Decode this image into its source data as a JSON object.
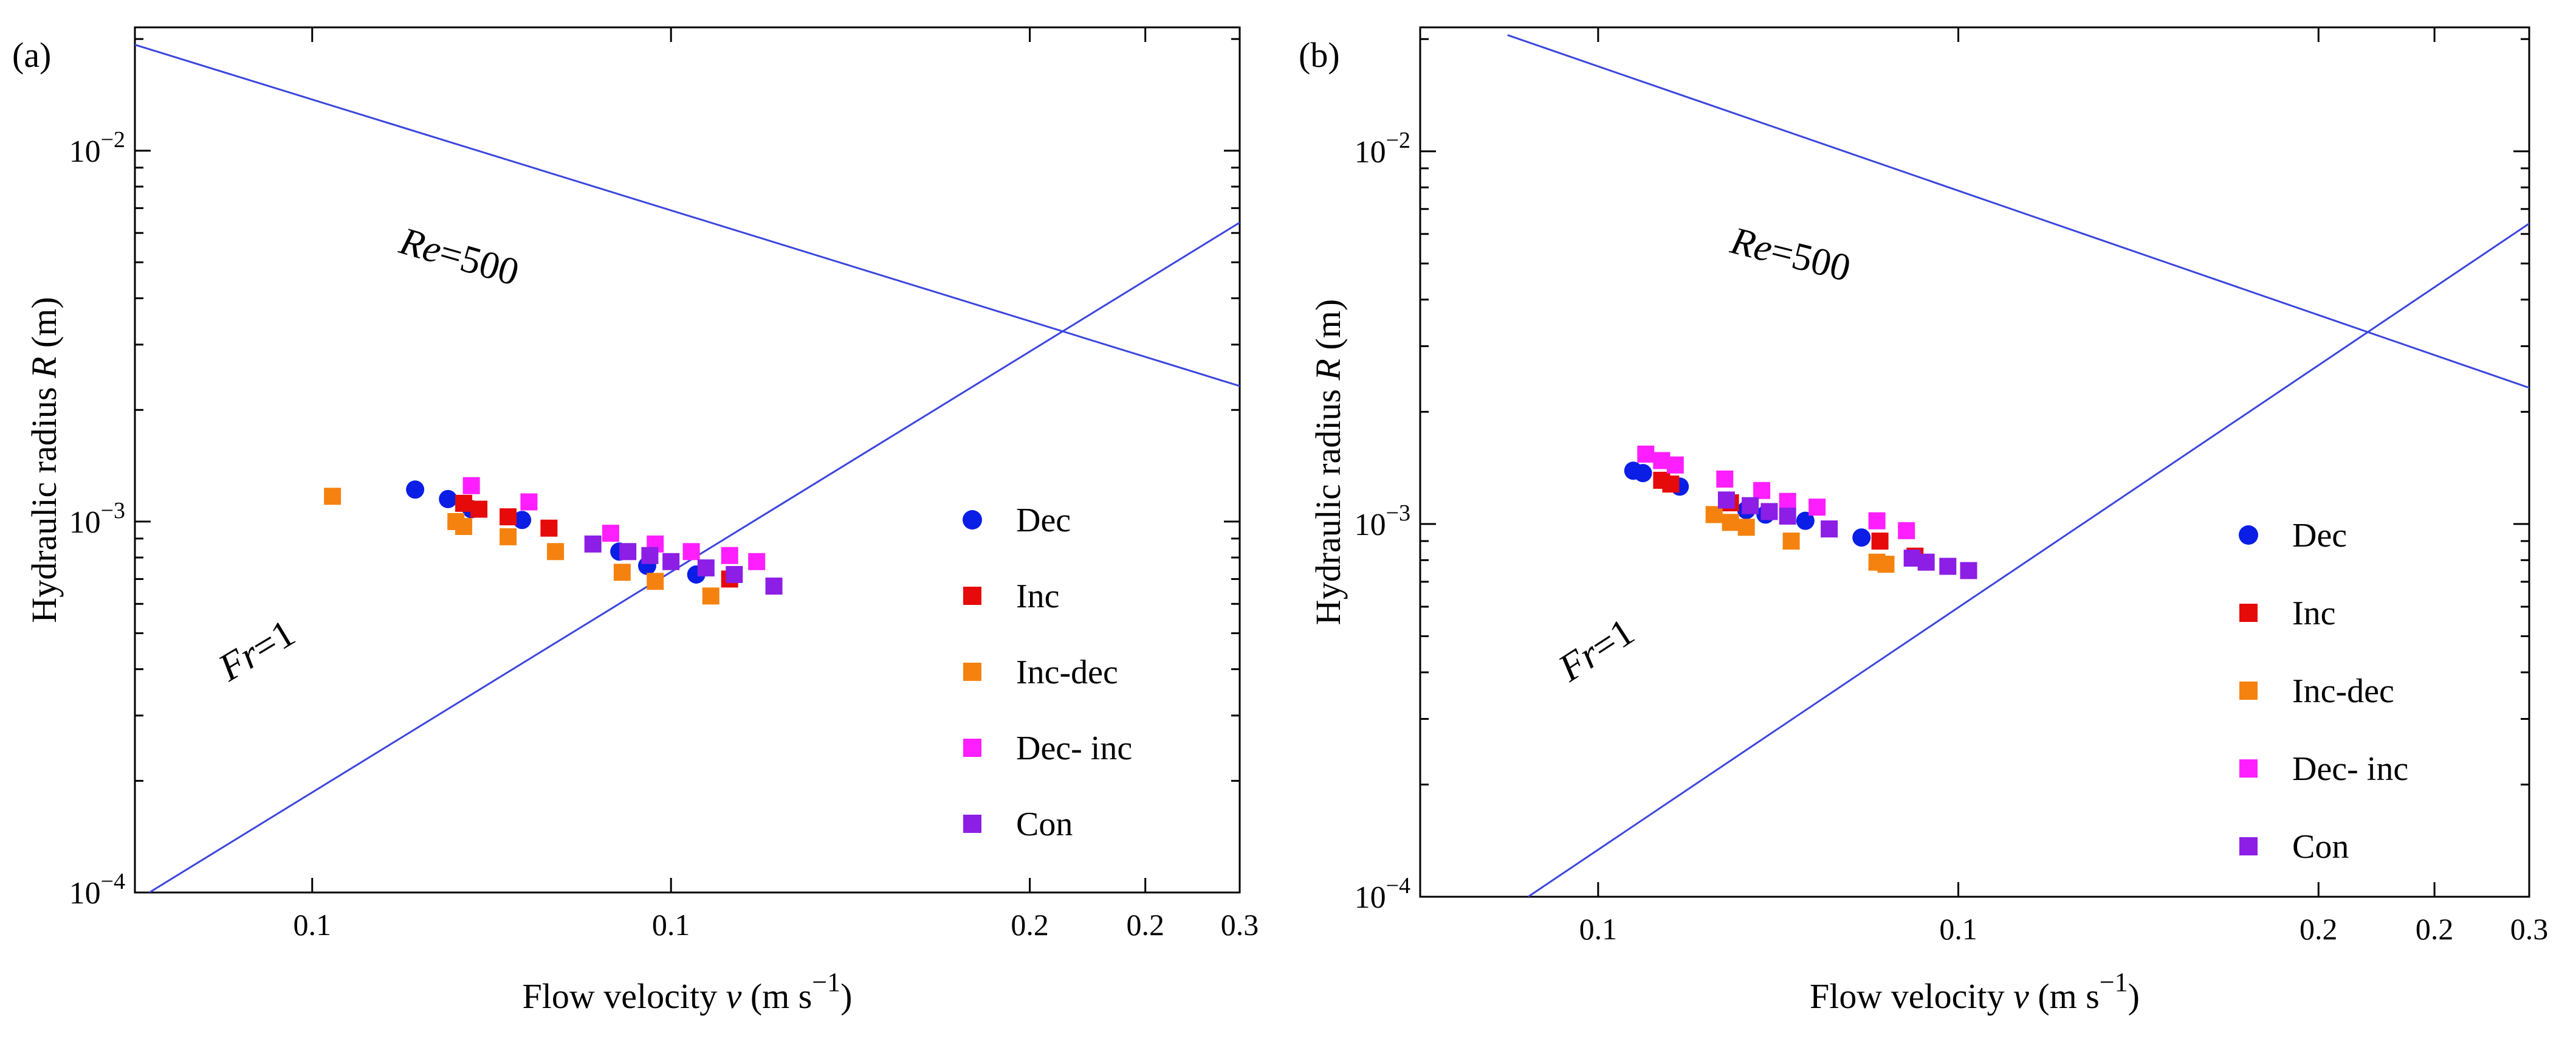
{
  "figure": {
    "title": ""
  },
  "colors": {
    "Dec": "#0a1ee6",
    "Inc": "#e60a0a",
    "Inc-dec": "#f5820f",
    "Dec- inc": "#ff1eff",
    "Con": "#8c1ee6",
    "reference_line": "#3c46dc",
    "axis": "#000000"
  },
  "chart_data": [
    {
      "type": "scatter",
      "panel_label": "(a)",
      "xlabel": "Flow velocity v (m s⁻¹)",
      "ylabel": "Hydraulic radius R (m)",
      "xscale": "log",
      "yscale": "log",
      "xlim": [
        0.0355,
        0.3
      ],
      "ylim": [
        0.0001,
        0.0215
      ],
      "x_ticks": [
        {
          "value": 0.05,
          "label": "0.1"
        },
        {
          "value": 0.1,
          "label": "0.1"
        },
        {
          "value": 0.2,
          "label": "0.2"
        },
        {
          "value": 0.25,
          "label": "0.2"
        },
        {
          "value": 0.3,
          "label": "0.3"
        }
      ],
      "y_ticks": [
        {
          "value": 0.01,
          "label": "10⁻²"
        },
        {
          "value": 0.001,
          "label": "10⁻³"
        },
        {
          "value": 0.0001,
          "label": "10⁻⁴"
        }
      ],
      "legend_position": "right",
      "reference_lines": [
        {
          "label": "Re=500",
          "points": [
            [
              0.0355,
              0.0193
            ],
            [
              0.3,
              0.00232
            ]
          ],
          "label_at": [
            0.066,
            0.0048
          ],
          "label_angle": 16
        },
        {
          "label": "Fr=1",
          "points": [
            [
              0.0365,
              0.0001
            ],
            [
              0.3,
              0.0064
            ]
          ],
          "label_at": [
            0.0455,
            0.00042
          ],
          "label_angle": -31
        }
      ],
      "series": [
        {
          "name": "Dec",
          "marker": "circle",
          "points": [
            [
              0.061,
              0.00122
            ],
            [
              0.065,
              0.00115
            ],
            [
              0.068,
              0.00108
            ],
            [
              0.075,
              0.00101
            ],
            [
              0.0905,
              0.00083
            ],
            [
              0.0955,
              0.00076
            ],
            [
              0.105,
              0.00072
            ]
          ]
        },
        {
          "name": "Inc",
          "marker": "square",
          "points": [
            [
              0.067,
              0.00112
            ],
            [
              0.069,
              0.00108
            ],
            [
              0.073,
              0.00103
            ],
            [
              0.079,
              0.00096
            ],
            [
              0.112,
              0.0007
            ]
          ]
        },
        {
          "name": "Inc-dec",
          "marker": "square",
          "points": [
            [
              0.052,
              0.00117
            ],
            [
              0.066,
              0.001
            ],
            [
              0.067,
              0.00097
            ],
            [
              0.073,
              0.00091
            ],
            [
              0.08,
              0.00083
            ],
            [
              0.091,
              0.00073
            ],
            [
              0.097,
              0.00069
            ],
            [
              0.108,
              0.00063
            ]
          ]
        },
        {
          "name": "Dec- inc",
          "marker": "square",
          "points": [
            [
              0.068,
              0.00125
            ],
            [
              0.076,
              0.00113
            ],
            [
              0.089,
              0.00093
            ],
            [
              0.097,
              0.00087
            ],
            [
              0.104,
              0.00083
            ],
            [
              0.112,
              0.00081
            ],
            [
              0.118,
              0.00078
            ]
          ]
        },
        {
          "name": "Con",
          "marker": "square",
          "points": [
            [
              0.086,
              0.00087
            ],
            [
              0.092,
              0.00083
            ],
            [
              0.096,
              0.00081
            ],
            [
              0.1,
              0.00078
            ],
            [
              0.107,
              0.00075
            ],
            [
              0.113,
              0.00072
            ],
            [
              0.122,
              0.00067
            ]
          ]
        }
      ]
    },
    {
      "type": "scatter",
      "panel_label": "(b)",
      "xlabel": "Flow velocity v (m s⁻¹)",
      "ylabel": "Hydraulic radius R (m)",
      "xscale": "log",
      "yscale": "log",
      "xlim": [
        0.0355,
        0.3
      ],
      "ylim": [
        0.0001,
        0.0215
      ],
      "x_ticks": [
        {
          "value": 0.05,
          "label": "0.1"
        },
        {
          "value": 0.1,
          "label": "0.1"
        },
        {
          "value": 0.2,
          "label": "0.2"
        },
        {
          "value": 0.25,
          "label": "0.2"
        },
        {
          "value": 0.3,
          "label": "0.3"
        }
      ],
      "y_ticks": [
        {
          "value": 0.01,
          "label": "10⁻²"
        },
        {
          "value": 0.001,
          "label": "10⁻³"
        },
        {
          "value": 0.0001,
          "label": "10⁻⁴"
        }
      ],
      "legend_position": "right",
      "reference_lines": [
        {
          "label": "Re=500",
          "points": [
            [
              0.042,
              0.0205
            ],
            [
              0.3,
              0.00232
            ]
          ],
          "label_at": [
            0.072,
            0.0049
          ],
          "label_angle": 14
        },
        {
          "label": "Fr=1",
          "points": [
            [
              0.0437,
              0.0001
            ],
            [
              0.3,
              0.0064
            ]
          ],
          "label_at": [
            0.0505,
            0.00043
          ],
          "label_angle": -33
        }
      ],
      "series": [
        {
          "name": "Dec",
          "marker": "circle",
          "points": [
            [
              0.0535,
              0.00139
            ],
            [
              0.0545,
              0.00137
            ],
            [
              0.0585,
              0.00126
            ],
            [
              0.0665,
              0.00109
            ],
            [
              0.069,
              0.00106
            ],
            [
              0.0745,
              0.00102
            ],
            [
              0.083,
              0.00092
            ]
          ]
        },
        {
          "name": "Inc",
          "marker": "square",
          "points": [
            [
              0.0565,
              0.00131
            ],
            [
              0.0575,
              0.00128
            ],
            [
              0.0645,
              0.00114
            ],
            [
              0.086,
              0.0009
            ],
            [
              0.092,
              0.00082
            ]
          ]
        },
        {
          "name": "Inc-dec",
          "marker": "square",
          "points": [
            [
              0.0625,
              0.00106
            ],
            [
              0.0645,
              0.00101
            ],
            [
              0.0665,
              0.00098
            ],
            [
              0.0725,
              0.0009
            ],
            [
              0.0855,
              0.00079
            ],
            [
              0.087,
              0.00078
            ]
          ]
        },
        {
          "name": "Dec- inc",
          "marker": "square",
          "points": [
            [
              0.0548,
              0.00154
            ],
            [
              0.0565,
              0.00148
            ],
            [
              0.058,
              0.00144
            ],
            [
              0.0638,
              0.00132
            ],
            [
              0.0685,
              0.00123
            ],
            [
              0.072,
              0.00115
            ],
            [
              0.0762,
              0.00111
            ],
            [
              0.0855,
              0.00102
            ],
            [
              0.0905,
              0.00096
            ]
          ]
        },
        {
          "name": "Con",
          "marker": "square",
          "points": [
            [
              0.064,
              0.00116
            ],
            [
              0.067,
              0.00112
            ],
            [
              0.0695,
              0.00108
            ],
            [
              0.072,
              0.00105
            ],
            [
              0.078,
              0.00097
            ],
            [
              0.0915,
              0.00081
            ],
            [
              0.094,
              0.00079
            ],
            [
              0.098,
              0.00077
            ],
            [
              0.102,
              0.00075
            ]
          ]
        }
      ]
    }
  ]
}
